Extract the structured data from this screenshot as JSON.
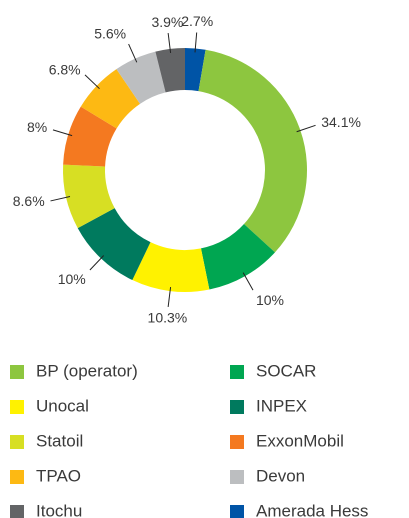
{
  "chart_data": {
    "type": "donut",
    "categories": [
      "BP (operator)",
      "SOCAR",
      "Unocal",
      "INPEX",
      "Statoil",
      "ExxonMobil",
      "TPAO",
      "Devon",
      "Itochu",
      "Amerada Hess"
    ],
    "values": [
      34.1,
      10,
      10.3,
      10,
      8.6,
      8,
      6.8,
      5.6,
      3.9,
      2.7
    ],
    "value_labels": [
      "34.1%",
      "10%",
      "10.3%",
      "10%",
      "8.6%",
      "8%",
      "6.8%",
      "5.6%",
      "3.9%",
      "2.7%"
    ],
    "colors": [
      "#8dc63f",
      "#00a651",
      "#fff200",
      "#007a5e",
      "#d7df23",
      "#f47920",
      "#fdb913",
      "#bcbec0",
      "#636466",
      "#0054a6"
    ]
  }
}
